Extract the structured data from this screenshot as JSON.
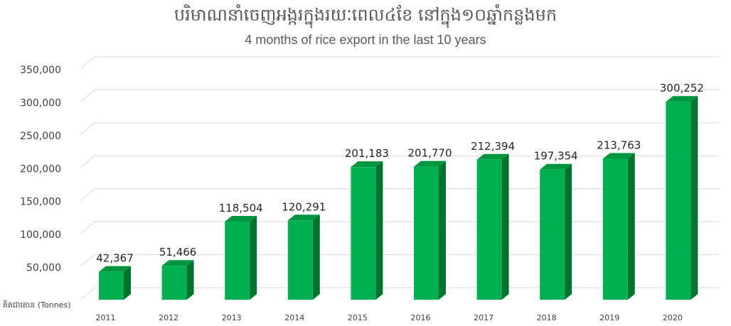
{
  "chart_data": {
    "type": "bar",
    "title": "បរិមាណនាំចេញអង្ករក្នុងរយៈពេល៤ខែ នៅក្នុង១០ឆ្នាំកន្លងមក",
    "subtitle": "4 months of rice export in the last 10 years",
    "ylabel": "គិតជាតោន (Tonnes)",
    "xlabel": "",
    "categories": [
      "2011",
      "2012",
      "2013",
      "2014",
      "2015",
      "2016",
      "2017",
      "2018",
      "2019",
      "2020"
    ],
    "values": [
      42367,
      51466,
      118504,
      120291,
      201183,
      201770,
      212394,
      197354,
      213763,
      300252
    ],
    "value_labels": [
      "42,367",
      "51,466",
      "118,504",
      "120,291",
      "201,183",
      "201,770",
      "212,394",
      "197,354",
      "213,763",
      "300,252"
    ],
    "ylim": [
      0,
      350000
    ],
    "yticks": [
      50000,
      100000,
      150000,
      200000,
      250000,
      300000,
      350000
    ],
    "ytick_labels": [
      "50,000",
      "100,000",
      "150,000",
      "200,000",
      "250,000",
      "300,000",
      "350,000"
    ],
    "grid": true,
    "legend": "none",
    "colors": {
      "bar_front": "#00b050",
      "bar_side": "#00742f",
      "bar_top": "#00963f",
      "grid": "#d9d9d9",
      "text": "#404040",
      "title": "#595959"
    }
  }
}
